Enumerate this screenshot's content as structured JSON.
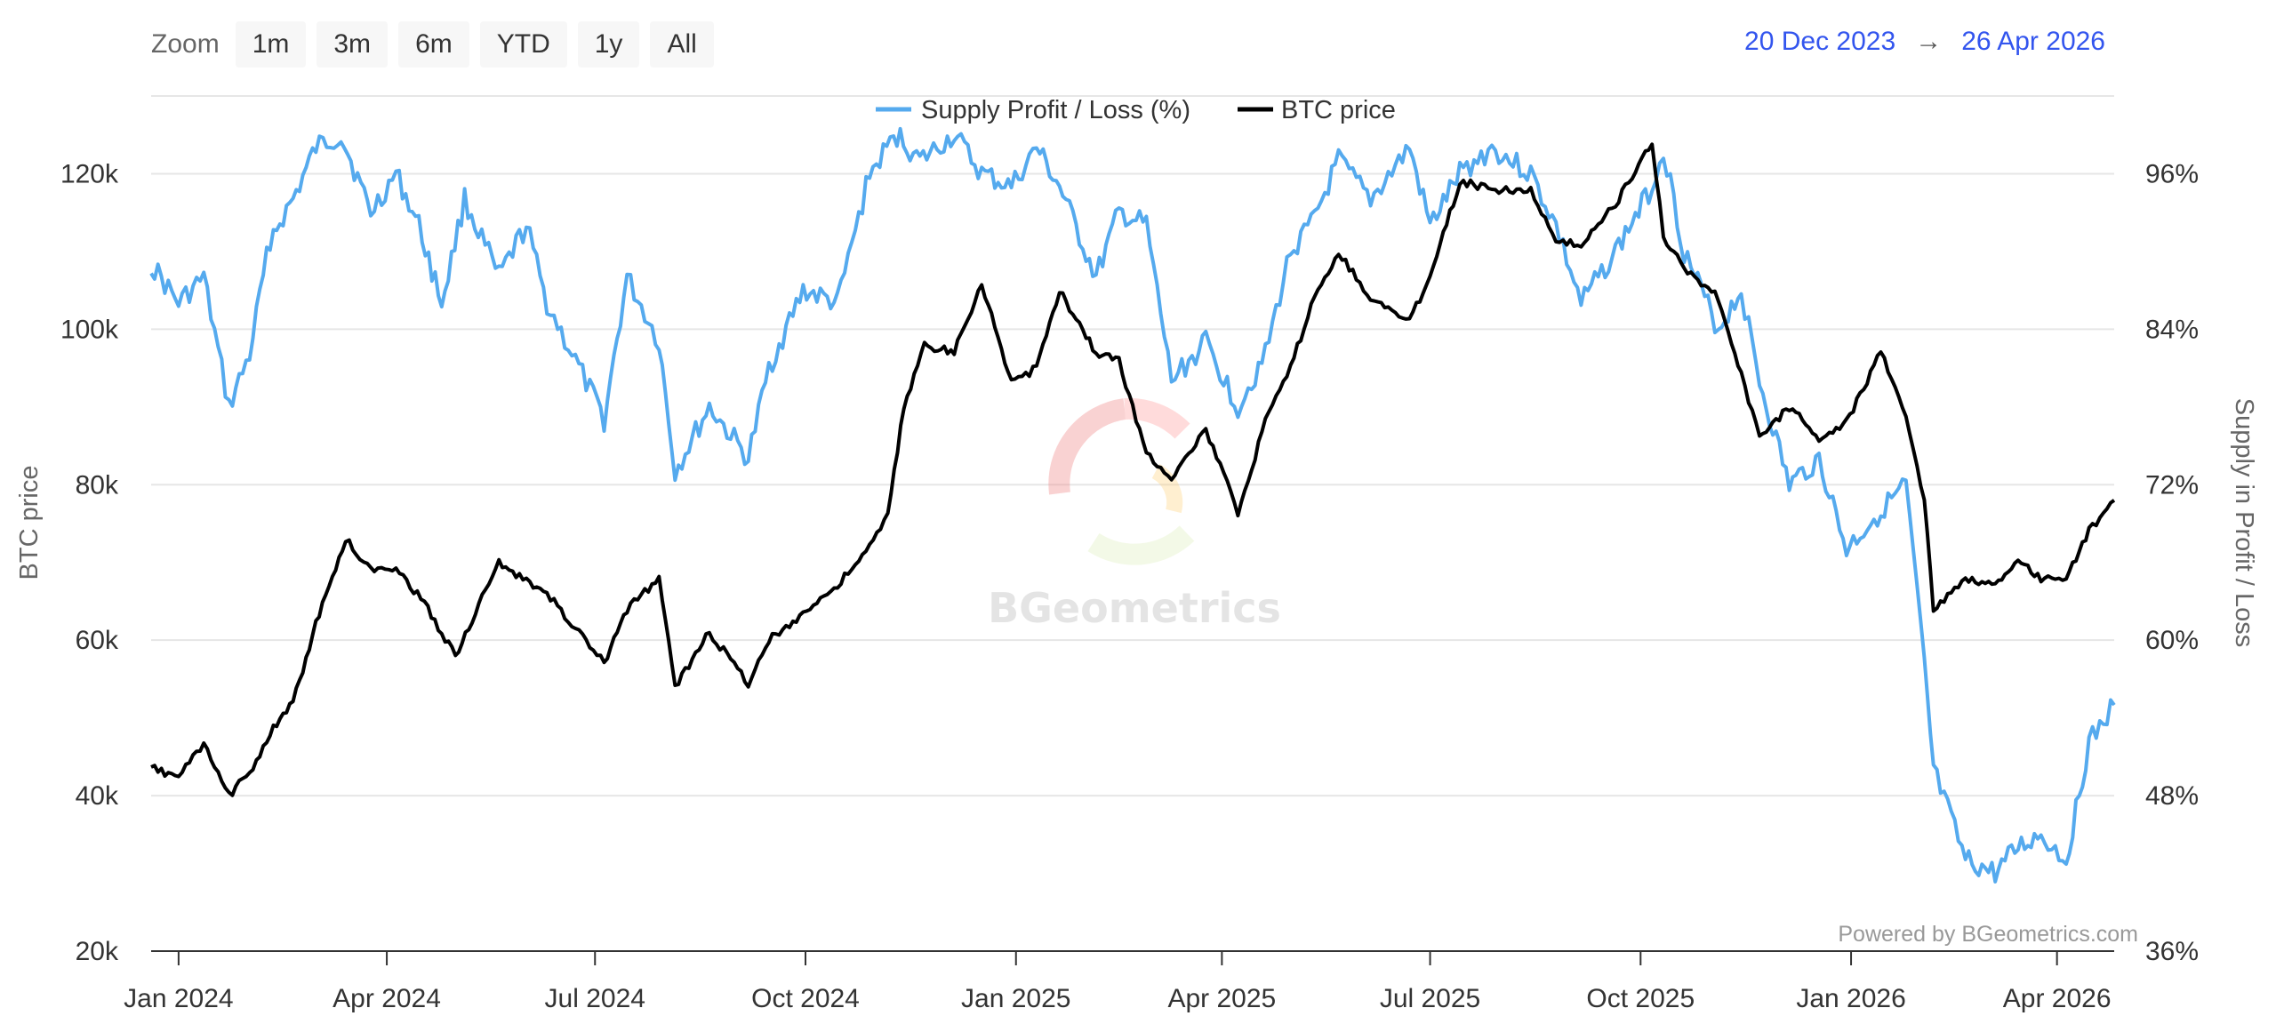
{
  "toolbar": {
    "zoom_label": "Zoom",
    "buttons": [
      "1m",
      "3m",
      "6m",
      "YTD",
      "1y",
      "All"
    ]
  },
  "range": {
    "from": "20 Dec 2023",
    "arrow": "→",
    "to": "26 Apr 2026"
  },
  "watermark": "BGeometrics",
  "credits": "Powered by BGeometrics.com",
  "colors": {
    "supply": "#55aaee",
    "price": "#000000",
    "range": "#3355ee",
    "grid": "#e6e6e6"
  },
  "chart_data": {
    "type": "line",
    "title": "",
    "xlabel": "",
    "x_ticks": [
      "Jan 2024",
      "Apr 2024",
      "Jul 2024",
      "Oct 2024",
      "Jan 2025",
      "Apr 2025",
      "Jul 2025",
      "Oct 2025",
      "Jan 2026",
      "Apr 2026"
    ],
    "x_range": [
      "2023-12-20",
      "2026-04-26"
    ],
    "y_left": {
      "label": "BTC price",
      "range": [
        20000,
        130000
      ],
      "ticks": [
        "20k",
        "40k",
        "60k",
        "80k",
        "100k",
        "120k"
      ]
    },
    "y_right": {
      "label": "Supply in Profit / Loss",
      "range": [
        36,
        102
      ],
      "ticks": [
        "36%",
        "48%",
        "60%",
        "72%",
        "84%",
        "96%"
      ]
    },
    "legend": {
      "position": "top",
      "entries": [
        "Supply Profit / Loss (%)",
        "BTC price"
      ]
    },
    "grid": true,
    "series": [
      {
        "name": "Supply Profit / Loss (%)",
        "axis": "right",
        "dates": [
          "2023-12-20",
          "2024-01-01",
          "2024-01-12",
          "2024-01-23",
          "2024-02-01",
          "2024-02-10",
          "2024-02-20",
          "2024-03-01",
          "2024-03-12",
          "2024-03-25",
          "2024-04-05",
          "2024-04-15",
          "2024-04-25",
          "2024-05-05",
          "2024-05-20",
          "2024-06-01",
          "2024-06-10",
          "2024-06-24",
          "2024-07-05",
          "2024-07-15",
          "2024-07-29",
          "2024-08-05",
          "2024-08-20",
          "2024-09-06",
          "2024-09-15",
          "2024-09-30",
          "2024-10-15",
          "2024-10-29",
          "2024-11-10",
          "2024-11-20",
          "2024-12-05",
          "2024-12-17",
          "2024-12-30",
          "2025-01-10",
          "2025-01-20",
          "2025-02-05",
          "2025-02-15",
          "2025-02-27",
          "2025-03-10",
          "2025-03-25",
          "2025-04-08",
          "2025-04-20",
          "2025-05-01",
          "2025-05-10",
          "2025-05-22",
          "2025-06-05",
          "2025-06-22",
          "2025-07-01",
          "2025-07-14",
          "2025-07-28",
          "2025-08-14",
          "2025-08-25",
          "2025-09-05",
          "2025-09-20",
          "2025-10-06",
          "2025-10-11",
          "2025-10-20",
          "2025-11-04",
          "2025-11-14",
          "2025-11-22",
          "2025-12-05",
          "2025-12-18",
          "2025-12-30",
          "2026-01-14",
          "2026-01-25",
          "2026-02-02",
          "2026-02-06",
          "2026-02-20",
          "2026-03-05",
          "2026-03-15",
          "2026-03-25",
          "2026-04-05",
          "2026-04-15",
          "2026-04-26"
        ],
        "values": [
          89,
          86,
          88,
          78,
          82,
          91,
          94,
          98,
          99,
          93,
          96,
          92,
          86,
          94,
          88,
          92,
          86,
          81,
          77,
          88,
          83,
          73,
          78,
          74,
          81,
          87,
          86,
          96,
          99,
          97,
          99,
          96,
          95,
          98,
          95,
          88,
          93,
          92,
          80,
          83,
          78,
          82,
          90,
          92,
          97,
          94,
          98,
          92,
          96,
          98,
          96,
          92,
          86,
          90,
          95,
          98,
          90,
          84,
          87,
          80,
          72,
          74,
          67,
          70,
          72,
          58,
          50,
          43,
          42,
          44,
          45,
          43,
          52,
          55
        ]
      },
      {
        "name": "BTC price",
        "axis": "left",
        "dates": [
          "2023-12-20",
          "2024-01-01",
          "2024-01-12",
          "2024-01-23",
          "2024-02-01",
          "2024-02-10",
          "2024-02-20",
          "2024-03-01",
          "2024-03-14",
          "2024-03-25",
          "2024-04-05",
          "2024-04-19",
          "2024-05-01",
          "2024-05-20",
          "2024-06-01",
          "2024-06-10",
          "2024-06-24",
          "2024-07-05",
          "2024-07-15",
          "2024-07-29",
          "2024-08-05",
          "2024-08-20",
          "2024-09-06",
          "2024-09-15",
          "2024-09-30",
          "2024-10-15",
          "2024-10-29",
          "2024-11-06",
          "2024-11-13",
          "2024-11-22",
          "2024-12-05",
          "2024-12-17",
          "2024-12-30",
          "2025-01-10",
          "2025-01-20",
          "2025-02-05",
          "2025-02-15",
          "2025-02-27",
          "2025-03-10",
          "2025-03-25",
          "2025-04-08",
          "2025-04-20",
          "2025-05-01",
          "2025-05-10",
          "2025-05-22",
          "2025-06-05",
          "2025-06-22",
          "2025-07-01",
          "2025-07-14",
          "2025-07-28",
          "2025-08-14",
          "2025-08-25",
          "2025-09-05",
          "2025-09-20",
          "2025-10-06",
          "2025-10-11",
          "2025-10-20",
          "2025-11-04",
          "2025-11-14",
          "2025-11-22",
          "2025-12-05",
          "2025-12-18",
          "2025-12-30",
          "2026-01-14",
          "2026-01-25",
          "2026-02-02",
          "2026-02-06",
          "2026-02-20",
          "2026-03-05",
          "2026-03-15",
          "2026-03-25",
          "2026-04-05",
          "2026-04-15",
          "2026-04-26"
        ],
        "values": [
          43500,
          42500,
          46500,
          40000,
          43000,
          48000,
          52000,
          62000,
          73000,
          69000,
          69500,
          64000,
          58000,
          70000,
          67500,
          66000,
          61000,
          57000,
          64000,
          68000,
          54000,
          61000,
          54500,
          60000,
          63500,
          67000,
          72000,
          76000,
          90000,
          98000,
          97000,
          106000,
          93000,
          95000,
          105000,
          97000,
          96000,
          84000,
          81000,
          87000,
          76500,
          88000,
          95000,
          103000,
          110000,
          104000,
          101000,
          107000,
          119000,
          118000,
          118000,
          111000,
          111000,
          116000,
          124000,
          112000,
          108000,
          104000,
          94000,
          86000,
          90000,
          86000,
          88000,
          97000,
          89000,
          78000,
          64000,
          68000,
          67000,
          70000,
          68000,
          68000,
          74000,
          78000
        ]
      }
    ]
  }
}
